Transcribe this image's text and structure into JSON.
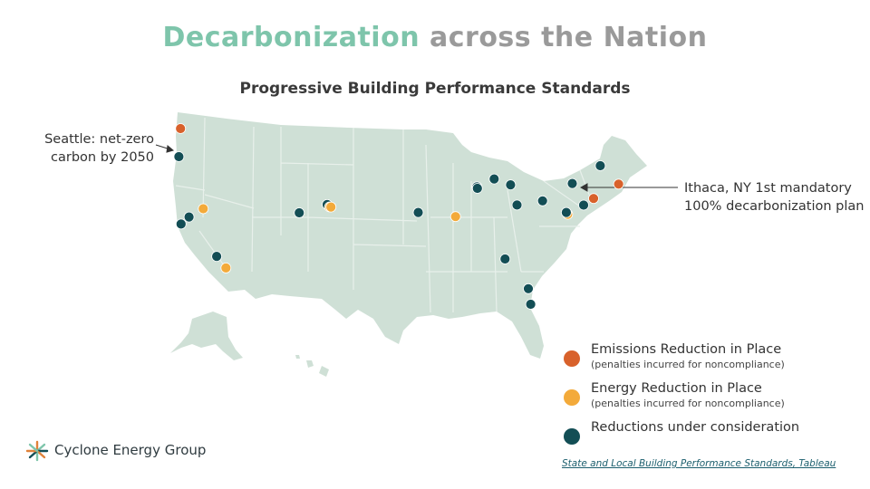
{
  "title": {
    "accent": "Decarbonization",
    "rest": "across the Nation"
  },
  "subtitle": "Progressive Building Performance Standards",
  "callouts": {
    "left": {
      "line1": "Seattle: net-zero",
      "line2": "carbon by 2050"
    },
    "right": {
      "line1": "Ithaca, NY 1st mandatory",
      "line2": "100% decarbonization plan"
    }
  },
  "colors": {
    "emissions": "#d8612b",
    "energy": "#f3aa3a",
    "consideration": "#134e55",
    "land": "#cfe0d6",
    "borders": "#e8f0eb"
  },
  "legend": [
    {
      "key": "emissions",
      "label": "Emissions Reduction in Place",
      "note": "(penalties incurred for noncompliance)"
    },
    {
      "key": "energy",
      "label": "Energy Reduction in Place",
      "note": "(penalties incurred for noncompliance)"
    },
    {
      "key": "consideration",
      "label": "Reductions under consideration",
      "note": ""
    }
  ],
  "logo": {
    "name": "Cyclone Energy Group",
    "icon": "cyclone-logo-icon"
  },
  "source": "State and Local Building Performance Standards, Tableau",
  "markers": [
    {
      "city": "Bellingham",
      "status": "emissions",
      "lat": 48.75,
      "lon": -122.48
    },
    {
      "city": "Portland",
      "status": "consideration",
      "lat": 45.52,
      "lon": -122.68
    },
    {
      "city": "Reno",
      "status": "energy",
      "lat": 39.53,
      "lon": -119.81
    },
    {
      "city": "Sacramento",
      "status": "consideration",
      "lat": 38.58,
      "lon": -121.49
    },
    {
      "city": "San Francisco",
      "status": "consideration",
      "lat": 37.77,
      "lon": -122.42
    },
    {
      "city": "Los Angeles",
      "status": "consideration",
      "lat": 34.05,
      "lon": -118.24
    },
    {
      "city": "San Diego",
      "status": "energy",
      "lat": 32.72,
      "lon": -117.16
    },
    {
      "city": "Boulder",
      "status": "consideration",
      "lat": 40.01,
      "lon": -105.27
    },
    {
      "city": "Denver",
      "status": "energy",
      "lat": 39.74,
      "lon": -104.99
    },
    {
      "city": "Aurora",
      "status": "energy",
      "lat": 39.73,
      "lon": -104.83
    },
    {
      "city": "Grand Junction",
      "status": "consideration",
      "lat": 39.06,
      "lon": -108.55
    },
    {
      "city": "Kansas City",
      "status": "consideration",
      "lat": 39.1,
      "lon": -94.58
    },
    {
      "city": "St. Louis",
      "status": "energy",
      "lat": 38.63,
      "lon": -90.2
    },
    {
      "city": "Evanston",
      "status": "consideration",
      "lat": 42.05,
      "lon": -87.69
    },
    {
      "city": "Chicago",
      "status": "consideration",
      "lat": 41.88,
      "lon": -87.63
    },
    {
      "city": "Ann Arbor",
      "status": "consideration",
      "lat": 42.28,
      "lon": -83.74
    },
    {
      "city": "Grand Rapids",
      "status": "consideration",
      "lat": 42.96,
      "lon": -85.67
    },
    {
      "city": "Columbus",
      "status": "consideration",
      "lat": 39.96,
      "lon": -82.99
    },
    {
      "city": "Pittsburgh",
      "status": "consideration",
      "lat": 40.44,
      "lon": -79.99
    },
    {
      "city": "Ithaca",
      "status": "consideration",
      "lat": 42.44,
      "lon": -76.5
    },
    {
      "city": "Burlington",
      "status": "consideration",
      "lat": 44.48,
      "lon": -73.21
    },
    {
      "city": "Boston",
      "status": "emissions",
      "lat": 42.36,
      "lon": -71.06
    },
    {
      "city": "New York",
      "status": "emissions",
      "lat": 40.71,
      "lon": -74.0
    },
    {
      "city": "Philadelphia",
      "status": "consideration",
      "lat": 39.95,
      "lon": -75.17
    },
    {
      "city": "Washington",
      "status": "energy",
      "lat": 38.9,
      "lon": -77.04
    },
    {
      "city": "Montgomery County",
      "status": "consideration",
      "lat": 39.1,
      "lon": -77.2
    },
    {
      "city": "Atlanta",
      "status": "consideration",
      "lat": 33.75,
      "lon": -84.39
    },
    {
      "city": "Jacksonville",
      "status": "consideration",
      "lat": 30.33,
      "lon": -81.66
    },
    {
      "city": "Orlando",
      "status": "consideration",
      "lat": 28.54,
      "lon": -81.38
    }
  ]
}
